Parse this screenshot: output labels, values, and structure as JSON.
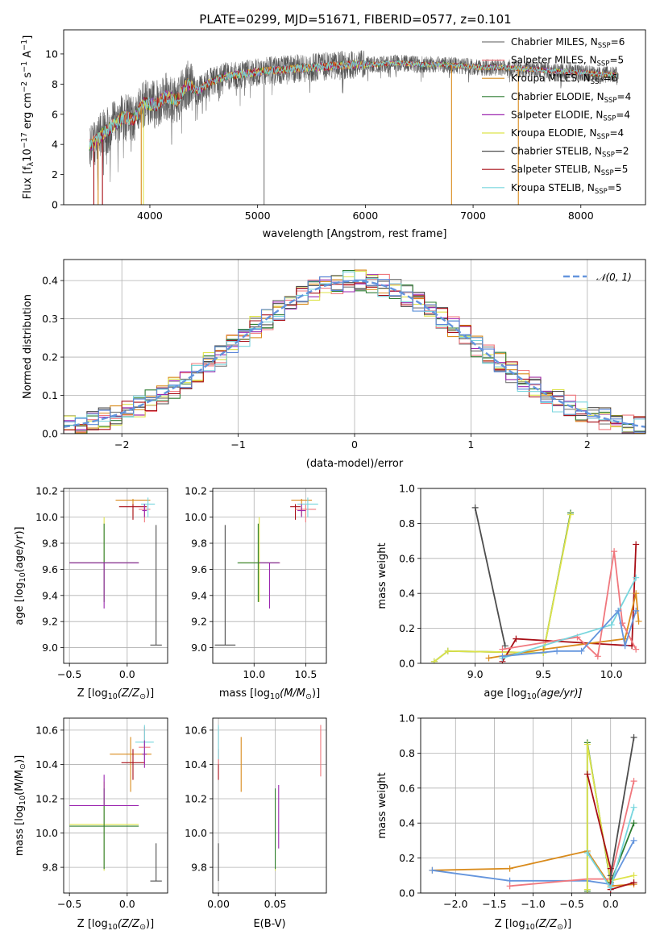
{
  "figure": {
    "title": "PLATE=0299, MJD=51671, FIBERID=0577, z=0.101",
    "colors": {
      "chabrier_miles": "#7a7a7a",
      "salpeter_miles": "#f0777d",
      "kroupa_miles": "#d98b1c",
      "chabrier_elodie": "#2e7d32",
      "salpeter_elodie": "#9c27b0",
      "kroupa_elodie": "#dde34a",
      "chabrier_stelib": "#4d4d4d",
      "salpeter_stelib": "#a80f17",
      "kroupa_stelib": "#78d6de",
      "normal": "#6495dd"
    }
  },
  "labels": {
    "spec_x": "wavelength [Angstrom, rest frame]",
    "spec_y_pre": "Flux [f",
    "spec_y_sub": "λ",
    "spec_y_mid": "10",
    "spec_y_exp1": "−17",
    "spec_y_post": " erg cm",
    "spec_y_exp2": "−2",
    "spec_y_s": " s",
    "spec_y_exp3": "−1",
    "spec_y_A": " A",
    "spec_y_exp4": "−1",
    "spec_y_end": "]",
    "hist_x": "(data-model)/error",
    "hist_y": "Normed distribution",
    "hist_legend": "𝒩(0, 1)",
    "age_y": "age  [log",
    "age_y_sub": "10",
    "age_y_rest": "(age/yr)]",
    "z_x": "Z [log",
    "z_x_sub": "10",
    "z_x_rest": "(Z/Z",
    "z_x_sun": "⊙",
    "z_x_end": ")]",
    "mass_x": "mass [log",
    "mass_x_sub": "10",
    "mass_x_rest": "(M/M",
    "mass_x_sun": "⊙",
    "mass_x_end": ")]",
    "mw_y": "mass weight",
    "age_x": "age  [log",
    "age_x_sub": "10",
    "age_x_rest": "(age/yr)]",
    "ebv_x": "E(B-V)"
  },
  "legend": [
    {
      "key": "chabrier_miles",
      "pre": "Chabrier MILES, N",
      "sub": "SSP",
      "post": "=6"
    },
    {
      "key": "salpeter_miles",
      "pre": "Salpeter MILES, N",
      "sub": "SSP",
      "post": "=5"
    },
    {
      "key": "kroupa_miles",
      "pre": "Kroupa MILES, N",
      "sub": "SSP",
      "post": "=6"
    },
    {
      "key": "chabrier_elodie",
      "pre": "Chabrier ELODIE, N",
      "sub": "SSP",
      "post": "=4"
    },
    {
      "key": "salpeter_elodie",
      "pre": "Salpeter ELODIE, N",
      "sub": "SSP",
      "post": "=4"
    },
    {
      "key": "kroupa_elodie",
      "pre": "Kroupa ELODIE, N",
      "sub": "SSP",
      "post": "=4"
    },
    {
      "key": "chabrier_stelib",
      "pre": "Chabrier STELIB, N",
      "sub": "SSP",
      "post": "=2"
    },
    {
      "key": "salpeter_stelib",
      "pre": "Salpeter STELIB, N",
      "sub": "SSP",
      "post": "=5"
    },
    {
      "key": "kroupa_stelib",
      "pre": "Kroupa STELIB, N",
      "sub": "SSP",
      "post": "=5"
    }
  ],
  "chart_data": [
    {
      "id": "spectrum",
      "type": "line",
      "xlim": [
        3200,
        8600
      ],
      "ylim": [
        0,
        11.6
      ],
      "xticks": [
        4000,
        5000,
        6000,
        7000,
        8000
      ],
      "yticks": [
        0,
        2,
        4,
        6,
        8,
        10
      ],
      "grid": false,
      "legend_position": "right",
      "continuum": {
        "x": [
          3450,
          3550,
          3650,
          3750,
          3850,
          3950,
          4050,
          4150,
          4250,
          4350,
          4450,
          4550,
          4700,
          4900,
          5100,
          5300,
          5500,
          5700,
          5900,
          6100,
          6300,
          6500,
          6700,
          6900,
          7100,
          7300,
          7500,
          7700,
          7900,
          8100,
          8300
        ],
        "y": [
          3.9,
          4.6,
          5.2,
          5.8,
          5.7,
          6.8,
          6.6,
          7.2,
          6.9,
          8.0,
          7.5,
          8.1,
          8.5,
          8.7,
          8.9,
          9.0,
          9.1,
          9.2,
          9.3,
          9.3,
          9.4,
          9.3,
          9.3,
          9.2,
          9.1,
          9.1,
          9.0,
          8.9,
          8.8,
          8.7,
          8.6
        ]
      },
      "spikes_x": [
        3480,
        3520,
        3560,
        3920,
        3940,
        5060,
        6800,
        7420
      ]
    },
    {
      "id": "residuals",
      "type": "histogram",
      "xlim": [
        -2.5,
        2.5
      ],
      "ylim": [
        0,
        0.455
      ],
      "xticks": [
        -2,
        -1,
        0,
        1,
        2
      ],
      "yticks": [
        0.0,
        0.1,
        0.2,
        0.3,
        0.4
      ],
      "grid": true,
      "bin_width": 0.1,
      "series_keys": [
        "chabrier_miles",
        "salpeter_miles",
        "kroupa_miles",
        "chabrier_elodie",
        "salpeter_elodie",
        "kroupa_elodie",
        "chabrier_stelib",
        "salpeter_stelib",
        "kroupa_stelib",
        "normal"
      ],
      "model_curve": "normal pdf, mean 0, sigma 1"
    },
    {
      "id": "age_vs_Z",
      "type": "errorbar",
      "xlim": [
        -0.55,
        0.35
      ],
      "ylim": [
        8.88,
        10.22
      ],
      "xticks": [
        -0.5,
        0.0
      ],
      "yticks": [
        9.0,
        9.2,
        9.4,
        9.6,
        9.8,
        10.0,
        10.2
      ],
      "grid": true,
      "points": [
        {
          "key": "chabrier_stelib",
          "x": 0.25,
          "xerr": 0.05,
          "y": 9.02,
          "yerr": [
            0.0,
            0.92
          ]
        },
        {
          "key": "kroupa_elodie",
          "x": -0.2,
          "xerr": 0.3,
          "y": 9.65,
          "yerr": [
            0.3,
            0.35
          ]
        },
        {
          "key": "chabrier_elodie",
          "x": -0.2,
          "xerr": 0.3,
          "y": 9.65,
          "yerr": [
            0.3,
            0.3
          ]
        },
        {
          "key": "salpeter_elodie",
          "x": -0.2,
          "xerr": 0.3,
          "y": 9.65,
          "yerr": [
            0.35,
            0.0
          ]
        },
        {
          "key": "kroupa_miles",
          "x": 0.05,
          "xerr": 0.15,
          "y": 10.13,
          "yerr": [
            0.12,
            0.01
          ]
        },
        {
          "key": "salpeter_stelib",
          "x": 0.05,
          "xerr": 0.12,
          "y": 10.08,
          "yerr": [
            0.1,
            0.02
          ]
        },
        {
          "key": "salpeter_miles",
          "x": 0.15,
          "xerr": 0.05,
          "y": 10.06,
          "yerr": [
            0.1,
            0.04
          ]
        },
        {
          "key": "kroupa_stelib",
          "x": 0.18,
          "xerr": 0.06,
          "y": 10.1,
          "yerr": [
            0.1,
            0.05
          ]
        },
        {
          "key": "salpeter_elodie",
          "x": 0.15,
          "xerr": 0.02,
          "y": 10.05,
          "yerr": [
            0.05,
            0.05
          ]
        }
      ]
    },
    {
      "id": "age_vs_mass",
      "type": "errorbar",
      "xlim": [
        9.6,
        10.7
      ],
      "ylim": [
        8.88,
        10.22
      ],
      "xticks": [
        10.0,
        10.5
      ],
      "yticks": [
        9.0,
        9.2,
        9.4,
        9.6,
        9.8,
        10.0,
        10.2
      ],
      "grid": true,
      "points": [
        {
          "key": "chabrier_stelib",
          "x": 9.72,
          "xerr": 0.1,
          "y": 9.02,
          "yerr": [
            0.0,
            0.92
          ]
        },
        {
          "key": "kroupa_elodie",
          "x": 10.05,
          "xerr": 0.2,
          "y": 9.65,
          "yerr": [
            0.3,
            0.35
          ]
        },
        {
          "key": "chabrier_elodie",
          "x": 10.04,
          "xerr": 0.2,
          "y": 9.65,
          "yerr": [
            0.3,
            0.3
          ]
        },
        {
          "key": "salpeter_elodie",
          "x": 10.15,
          "xerr": 0.1,
          "y": 9.65,
          "yerr": [
            0.35,
            0.0
          ]
        },
        {
          "key": "kroupa_miles",
          "x": 10.46,
          "xerr": 0.1,
          "y": 10.13,
          "yerr": [
            0.12,
            0.01
          ]
        },
        {
          "key": "salpeter_stelib",
          "x": 10.4,
          "xerr": 0.05,
          "y": 10.08,
          "yerr": [
            0.1,
            0.02
          ]
        },
        {
          "key": "salpeter_miles",
          "x": 10.5,
          "xerr": 0.1,
          "y": 10.06,
          "yerr": [
            0.1,
            0.04
          ]
        },
        {
          "key": "kroupa_stelib",
          "x": 10.52,
          "xerr": 0.1,
          "y": 10.1,
          "yerr": [
            0.1,
            0.05
          ]
        },
        {
          "key": "salpeter_elodie",
          "x": 10.46,
          "xerr": 0.04,
          "y": 10.05,
          "yerr": [
            0.05,
            0.05
          ]
        }
      ]
    },
    {
      "id": "mass_weight_vs_age",
      "type": "line",
      "xlim": [
        8.6,
        10.25
      ],
      "ylim": [
        0,
        1.0
      ],
      "xticks": [
        9.0,
        9.5,
        10.0
      ],
      "yticks": [
        0.0,
        0.2,
        0.4,
        0.6,
        0.8,
        1.0
      ],
      "grid": true,
      "series": [
        {
          "key": "chabrier_stelib",
          "x": [
            9.0,
            9.22
          ],
          "y": [
            0.89,
            0.1
          ]
        },
        {
          "key": "chabrier_elodie",
          "x": [
            8.7,
            8.8,
            9.5,
            9.7
          ],
          "y": [
            0.01,
            0.07,
            0.06,
            0.86
          ]
        },
        {
          "key": "kroupa_elodie",
          "x": [
            8.7,
            8.8,
            9.5,
            9.7
          ],
          "y": [
            0.01,
            0.07,
            0.06,
            0.85
          ]
        },
        {
          "key": "salpeter_stelib",
          "x": [
            9.2,
            9.3,
            10.15,
            10.18
          ],
          "y": [
            0.01,
            0.14,
            0.1,
            0.68
          ]
        },
        {
          "key": "kroupa_miles",
          "x": [
            9.1,
            9.5,
            10.1,
            10.18,
            10.2
          ],
          "y": [
            0.03,
            0.08,
            0.14,
            0.4,
            0.24
          ]
        },
        {
          "key": "salpeter_miles",
          "x": [
            9.2,
            9.75,
            9.9,
            10.02,
            10.08,
            10.18
          ],
          "y": [
            0.08,
            0.15,
            0.04,
            0.64,
            0.23,
            0.08
          ]
        },
        {
          "key": "kroupa_stelib",
          "x": [
            9.2,
            10.0,
            10.18
          ],
          "y": [
            0.03,
            0.22,
            0.49
          ]
        },
        {
          "key": "normal",
          "x": [
            9.2,
            9.6,
            9.78,
            10.05,
            10.1,
            10.18
          ],
          "y": [
            0.04,
            0.07,
            0.07,
            0.3,
            0.1,
            0.3
          ]
        }
      ]
    },
    {
      "id": "mass_vs_Z",
      "type": "errorbar",
      "xlim": [
        -0.55,
        0.35
      ],
      "ylim": [
        9.65,
        10.67
      ],
      "xticks": [
        -0.5,
        0.0
      ],
      "yticks": [
        9.8,
        10.0,
        10.2,
        10.4,
        10.6
      ],
      "grid": true,
      "points": [
        {
          "key": "chabrier_stelib",
          "x": 0.25,
          "xerr": 0.05,
          "y": 9.72,
          "yerr": [
            0.0,
            0.22
          ]
        },
        {
          "key": "kroupa_elodie",
          "x": -0.2,
          "xerr": 0.3,
          "y": 10.05,
          "yerr": [
            0.27,
            0.25
          ]
        },
        {
          "key": "chabrier_elodie",
          "x": -0.2,
          "xerr": 0.3,
          "y": 10.04,
          "yerr": [
            0.25,
            0.22
          ]
        },
        {
          "key": "salpeter_elodie",
          "x": -0.2,
          "xerr": 0.3,
          "y": 10.16,
          "yerr": [
            0.0,
            0.18
          ]
        },
        {
          "key": "kroupa_miles",
          "x": 0.03,
          "xerr": 0.18,
          "y": 10.46,
          "yerr": [
            0.22,
            0.1
          ]
        },
        {
          "key": "salpeter_stelib",
          "x": 0.05,
          "xerr": 0.1,
          "y": 10.41,
          "yerr": [
            0.1,
            0.08
          ]
        },
        {
          "key": "salpeter_miles",
          "x": 0.15,
          "xerr": 0.05,
          "y": 10.5,
          "yerr": [
            0.1,
            0.12
          ]
        },
        {
          "key": "kroupa_stelib",
          "x": 0.15,
          "xerr": 0.08,
          "y": 10.53,
          "yerr": [
            0.1,
            0.1
          ]
        },
        {
          "key": "salpeter_elodie",
          "x": 0.15,
          "xerr": 0.02,
          "y": 10.46,
          "yerr": [
            0.08,
            0.08
          ]
        }
      ]
    },
    {
      "id": "mass_vs_ebv",
      "type": "errorbar",
      "xlim": [
        -0.005,
        0.095
      ],
      "ylim": [
        9.65,
        10.67
      ],
      "xticks": [
        0.0,
        0.05
      ],
      "yticks": [
        9.8,
        10.0,
        10.2,
        10.4,
        10.6
      ],
      "grid": true,
      "points": [
        {
          "key": "chabrier_stelib",
          "x": 0.0,
          "xerr": 0,
          "y": 9.72,
          "yerr": [
            0.0,
            0.22
          ]
        },
        {
          "key": "kroupa_elodie",
          "x": 0.05,
          "xerr": 0,
          "y": 10.05,
          "yerr": [
            0.27,
            0.2
          ]
        },
        {
          "key": "chabrier_elodie",
          "x": 0.05,
          "xerr": 0,
          "y": 10.04,
          "yerr": [
            0.25,
            0.22
          ]
        },
        {
          "key": "salpeter_elodie",
          "x": 0.053,
          "xerr": 0,
          "y": 10.16,
          "yerr": [
            0.25,
            0.12
          ]
        },
        {
          "key": "kroupa_miles",
          "x": 0.02,
          "xerr": 0,
          "y": 10.4,
          "yerr": [
            0.16,
            0.16
          ]
        },
        {
          "key": "salpeter_stelib",
          "x": 0.0,
          "xerr": 0,
          "y": 10.41,
          "yerr": [
            0.1,
            0.08
          ]
        },
        {
          "key": "salpeter_miles",
          "x": 0.0,
          "xerr": 0,
          "y": 10.5,
          "yerr": [
            0.1,
            0.12
          ]
        },
        {
          "key": "kroupa_stelib",
          "x": 0.0,
          "xerr": 0,
          "y": 10.53,
          "yerr": [
            0.1,
            0.1
          ]
        },
        {
          "key": "salpeter_miles",
          "x": 0.09,
          "xerr": 0,
          "y": 10.48,
          "yerr": [
            0.15,
            0.15
          ]
        }
      ]
    },
    {
      "id": "mass_weight_vs_Z",
      "type": "line",
      "xlim": [
        -2.45,
        0.45
      ],
      "ylim": [
        0,
        1.0
      ],
      "xticks": [
        -2.0,
        -1.5,
        -1.0,
        -0.5,
        0.0
      ],
      "yticks": [
        0.0,
        0.2,
        0.4,
        0.6,
        0.8,
        1.0
      ],
      "grid": true,
      "series": [
        {
          "key": "kroupa_miles",
          "x": [
            -2.3,
            -1.3,
            -0.3,
            0.0,
            0.3
          ],
          "y": [
            0.13,
            0.14,
            0.24,
            0.04,
            0.05
          ]
        },
        {
          "key": "normal",
          "x": [
            -2.3,
            -1.3,
            -0.3,
            0.0,
            0.3
          ],
          "y": [
            0.13,
            0.07,
            0.07,
            0.05,
            0.3
          ]
        },
        {
          "key": "salpeter_miles",
          "x": [
            -1.3,
            -0.3,
            0.0,
            0.3
          ],
          "y": [
            0.04,
            0.08,
            0.08,
            0.64
          ]
        },
        {
          "key": "chabrier_elodie",
          "x": [
            -0.3,
            -0.3,
            0.0,
            0.3
          ],
          "y": [
            0.01,
            0.86,
            0.06,
            0.4
          ]
        },
        {
          "key": "kroupa_elodie",
          "x": [
            -0.3,
            -0.3,
            0.0,
            0.3
          ],
          "y": [
            0.02,
            0.85,
            0.07,
            0.1
          ]
        },
        {
          "key": "salpeter_stelib",
          "x": [
            -0.3,
            0.0,
            0.0,
            0.3
          ],
          "y": [
            0.68,
            0.14,
            0.02,
            0.06
          ]
        },
        {
          "key": "chabrier_stelib",
          "x": [
            0.0,
            0.3
          ],
          "y": [
            0.1,
            0.89
          ]
        },
        {
          "key": "kroupa_stelib",
          "x": [
            -0.3,
            0.0,
            0.3
          ],
          "y": [
            0.23,
            0.03,
            0.49
          ]
        }
      ]
    }
  ]
}
